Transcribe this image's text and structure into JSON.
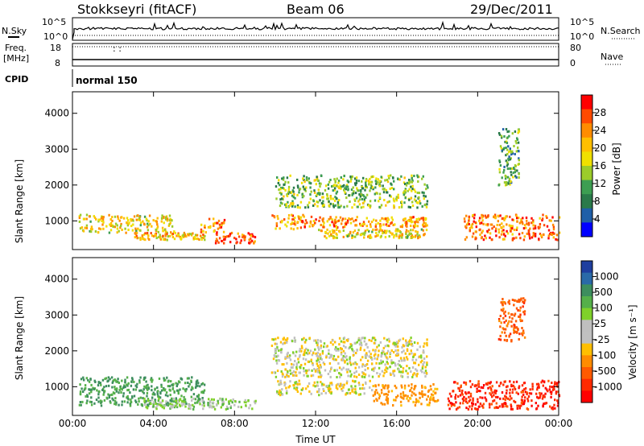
{
  "header": {
    "station": "Stokkseyri (fitACF)",
    "beam": "Beam 06",
    "date": "29/Dec/2011"
  },
  "status_panel": {
    "nsky_label": "N.Sky",
    "nsky_ticks": [
      "10^5",
      "10^0"
    ],
    "nsearch_label": "N.Search",
    "nsearch_ticks": [
      "10^5",
      "10^0"
    ],
    "freq_label_1": "Freq.",
    "freq_label_2": "[MHz]",
    "freq_ticks": [
      "18",
      "8"
    ],
    "nave_label": "Nave",
    "nave_ticks": [
      "80",
      "0"
    ],
    "cpid_label": "CPID",
    "cpid_value": "normal 150"
  },
  "chart_data": [
    {
      "type": "heatmap",
      "panel": "power",
      "xlabel": "",
      "ylabel": "Slant Range [km]",
      "x_ticks": [
        "00:00",
        "04:00",
        "08:00",
        "12:00",
        "16:00",
        "20:00",
        "00:00"
      ],
      "y_ticks": [
        1000,
        2000,
        3000,
        4000
      ],
      "ylim": [
        200,
        4600
      ],
      "colorbar": {
        "label": "Power [dB]",
        "ticks": [
          "28",
          "24",
          "20",
          "16",
          "12",
          "8",
          "4"
        ],
        "colors": [
          "#ff0000",
          "#ff4a00",
          "#ff8c00",
          "#ffbf00",
          "#f0e000",
          "#9ccc2a",
          "#3d9e52",
          "#2a7a4a",
          "#1f5fa8",
          "#0000ff"
        ]
      },
      "echo_bands": [
        {
          "t0": 0.3,
          "t1": 5.0,
          "r0": 700,
          "r1": 1200,
          "db": 18
        },
        {
          "t0": 3.0,
          "t1": 6.5,
          "r0": 500,
          "r1": 700,
          "db": 20
        },
        {
          "t0": 6.3,
          "t1": 7.5,
          "r0": 700,
          "r1": 1100,
          "db": 24
        },
        {
          "t0": 7.0,
          "t1": 9.0,
          "r0": 400,
          "r1": 700,
          "db": 28
        },
        {
          "t0": 9.8,
          "t1": 11.7,
          "r0": 800,
          "r1": 1200,
          "db": 22
        },
        {
          "t0": 11.7,
          "t1": 17.5,
          "r0": 850,
          "r1": 1150,
          "db": 22
        },
        {
          "t0": 12.0,
          "t1": 17.5,
          "r0": 550,
          "r1": 800,
          "db": 18
        },
        {
          "t0": 10.0,
          "t1": 17.5,
          "r0": 1400,
          "r1": 2300,
          "db": 12
        },
        {
          "t0": 19.3,
          "t1": 24.0,
          "r0": 500,
          "r1": 1200,
          "db": 24
        },
        {
          "t0": 21.0,
          "t1": 22.0,
          "r0": 2000,
          "r1": 3600,
          "db": 10
        }
      ]
    },
    {
      "type": "heatmap",
      "panel": "velocity",
      "xlabel": "Time UT",
      "ylabel": "Slant Range [km]",
      "x_ticks": [
        "00:00",
        "04:00",
        "08:00",
        "12:00",
        "16:00",
        "20:00",
        "00:00"
      ],
      "y_ticks": [
        1000,
        2000,
        3000,
        4000
      ],
      "ylim": [
        200,
        4600
      ],
      "colorbar": {
        "label": "Velocity [m s⁻¹]",
        "ticks": [
          "1000",
          "500",
          "100",
          "25",
          "-25",
          "-100",
          "-500",
          "-1000"
        ],
        "colors": [
          "#1f3f9f",
          "#2a6aa8",
          "#3d8e5e",
          "#55b04a",
          "#7fd12a",
          "#bfbfbf",
          "#c0c0c0",
          "#ffbf00",
          "#ff8c00",
          "#ff5a00",
          "#ff2a00",
          "#ff0000"
        ]
      },
      "echo_bands": [
        {
          "t0": 0.3,
          "t1": 6.5,
          "r0": 500,
          "r1": 1300,
          "v": 300
        },
        {
          "t0": 3.5,
          "t1": 9.0,
          "r0": 400,
          "r1": 700,
          "v": 60
        },
        {
          "t0": 9.8,
          "t1": 17.5,
          "r0": 1300,
          "r1": 2400,
          "v": 0
        },
        {
          "t0": 10.0,
          "t1": 14.8,
          "r0": 800,
          "r1": 1200,
          "v": 0
        },
        {
          "t0": 14.8,
          "t1": 18.0,
          "r0": 500,
          "r1": 1100,
          "v": -120
        },
        {
          "t0": 18.5,
          "t1": 24.0,
          "r0": 400,
          "r1": 1200,
          "v": -600
        },
        {
          "t0": 21.0,
          "t1": 22.3,
          "r0": 2300,
          "r1": 3500,
          "v": -300
        }
      ]
    }
  ]
}
